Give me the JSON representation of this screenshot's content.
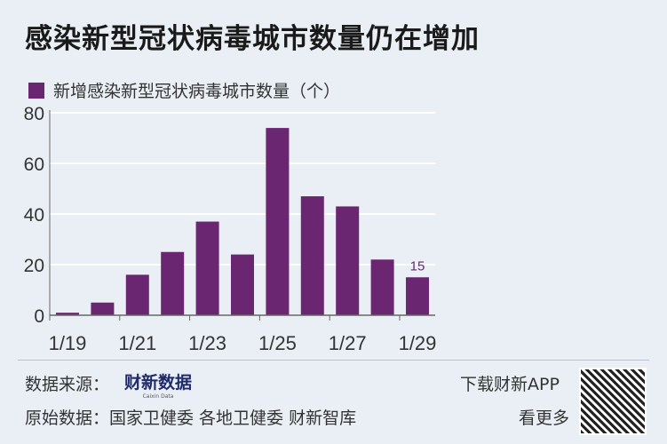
{
  "title": "感染新型冠状病毒城市数量仍在增加",
  "chart_data": {
    "type": "bar",
    "title": "感染新型冠状病毒城市数量仍在增加",
    "categories": [
      "1/19",
      "1/20",
      "1/21",
      "1/22",
      "1/23",
      "1/24",
      "1/25",
      "1/26",
      "1/27",
      "1/28",
      "1/29"
    ],
    "series": [
      {
        "name": "新增感染新型冠状病毒城市数量（个）",
        "values": [
          1,
          5,
          16,
          25,
          37,
          24,
          74,
          47,
          43,
          22,
          15
        ],
        "color": "#6a2671"
      }
    ],
    "x_tick_labels": [
      "1/19",
      "1/21",
      "1/23",
      "1/25",
      "1/27",
      "1/29"
    ],
    "y_ticks": [
      0,
      20,
      40,
      60,
      80
    ],
    "ylim": [
      0,
      80
    ],
    "grid": true,
    "legend": "top-left",
    "data_labels": [
      {
        "category": "1/29",
        "text": "15"
      }
    ]
  },
  "footer": {
    "source_label": "数据来源：",
    "source_logo": "财新数据",
    "source_logo_sub": "Caixin Data",
    "raw_label": "原始数据：",
    "raw_sources": "国家卫健委 各地卫健委 财新智库",
    "download": "下载财新APP",
    "more": "看更多"
  }
}
